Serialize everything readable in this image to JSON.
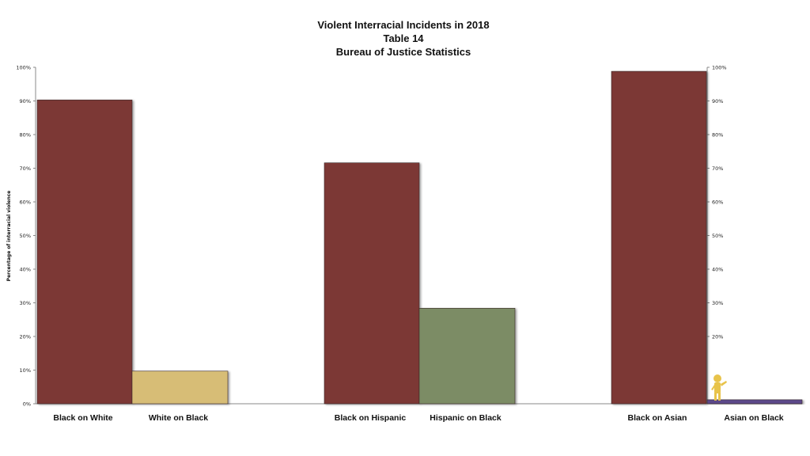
{
  "chart_data": {
    "type": "bar",
    "title_lines": [
      "Violent Interracial Incidents in 2018",
      "Table 14",
      "Bureau of Justice Statistics"
    ],
    "ylabel": "Percentage of interracial violence",
    "ylim": [
      0,
      100
    ],
    "left_ticks": [
      "0%",
      "10%",
      "20%",
      "30%",
      "40%",
      "50%",
      "60%",
      "70%",
      "80%",
      "90%",
      "100%"
    ],
    "right_ticks": [
      "20%",
      "30%",
      "40%",
      "50%",
      "60%",
      "70%",
      "80%",
      "90%",
      "100%"
    ],
    "categories": [
      "Black on White",
      "White on Black",
      "Black on Hispanic",
      "Hispanic on Black",
      "Black on Asian",
      "Asian on Black"
    ],
    "values": [
      90.3,
      9.7,
      71.6,
      28.4,
      98.8,
      1.2
    ],
    "colors": [
      "#7b3736",
      "#d7bd76",
      "#7b3736",
      "#7b8c65",
      "#7b3736",
      "#5b4a8a"
    ],
    "grid": false,
    "legend": "none",
    "decoration_icon": "figure-pointing-icon"
  }
}
